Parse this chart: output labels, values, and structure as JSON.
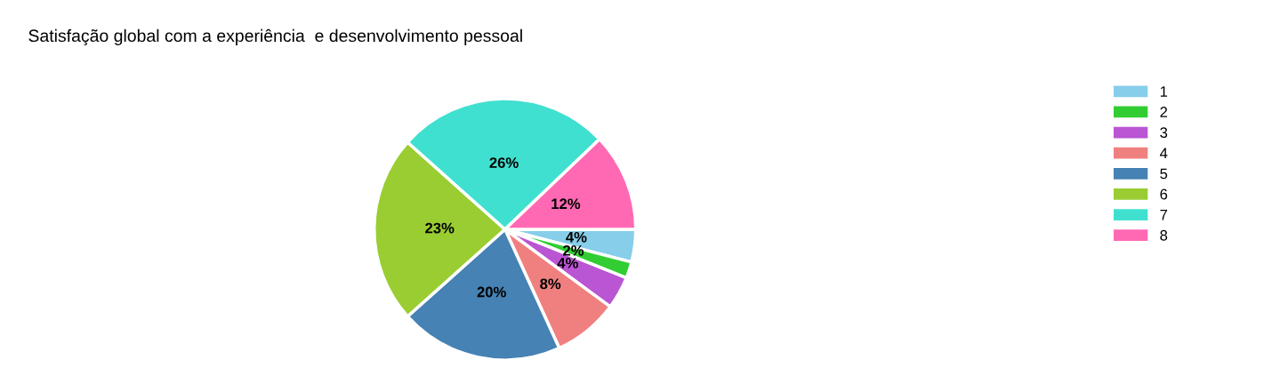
{
  "chart_data": {
    "type": "pie",
    "title": "Satisfação global com a experiência  e desenvolvimento pessoal",
    "categories": [
      "1",
      "2",
      "3",
      "4",
      "5",
      "6",
      "7",
      "8"
    ],
    "values": [
      4,
      2,
      4,
      8,
      20,
      23,
      26,
      12
    ],
    "colors": [
      "#87ceeb",
      "#32cd32",
      "#ba55d3",
      "#f08080",
      "#4682b4",
      "#9acd32",
      "#40e0d0",
      "#ff69b4"
    ],
    "value_labels": [
      "4%",
      "2%",
      "4%",
      "8%",
      "20%",
      "23%",
      "26%",
      "12%"
    ],
    "legend": "right"
  }
}
